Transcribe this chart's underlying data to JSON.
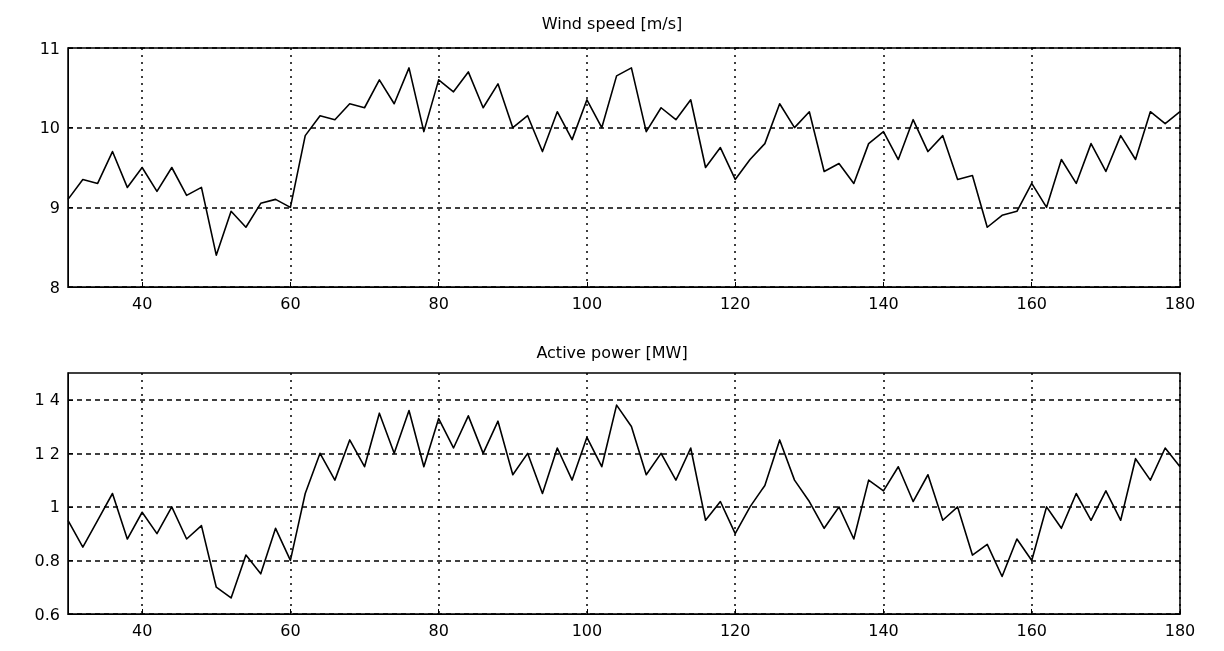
{
  "chart_data": [
    {
      "type": "line",
      "title": "Wind speed [m/s]",
      "grid": true,
      "xlim": [
        30,
        180
      ],
      "xticks": [
        40,
        60,
        80,
        100,
        120,
        140,
        160,
        180
      ],
      "ylim": [
        8,
        11
      ],
      "yticks": [
        8,
        9,
        10,
        11
      ],
      "x": [
        30,
        32,
        34,
        36,
        38,
        40,
        42,
        44,
        46,
        48,
        50,
        52,
        54,
        56,
        58,
        60,
        62,
        64,
        66,
        68,
        70,
        72,
        74,
        76,
        78,
        80,
        82,
        84,
        86,
        88,
        90,
        92,
        94,
        96,
        98,
        100,
        102,
        104,
        106,
        108,
        110,
        112,
        114,
        116,
        118,
        120,
        122,
        124,
        126,
        128,
        130,
        132,
        134,
        136,
        138,
        140,
        142,
        144,
        146,
        148,
        150,
        152,
        154,
        156,
        158,
        160,
        162,
        164,
        166,
        168,
        170,
        172,
        174,
        176,
        178,
        180
      ],
      "series": [
        {
          "color": "#000000",
          "values": [
            9.1,
            9.35,
            9.3,
            9.7,
            9.25,
            9.5,
            9.2,
            9.5,
            9.15,
            9.25,
            8.4,
            8.95,
            8.75,
            9.05,
            9.1,
            9.0,
            9.9,
            10.15,
            10.1,
            10.3,
            10.25,
            10.6,
            10.3,
            10.75,
            9.95,
            10.6,
            10.45,
            10.7,
            10.25,
            10.55,
            10.0,
            10.15,
            9.7,
            10.2,
            9.85,
            10.35,
            10.0,
            10.65,
            10.75,
            9.95,
            10.25,
            10.1,
            10.35,
            9.5,
            9.75,
            9.35,
            9.6,
            9.8,
            10.3,
            10.0,
            10.2,
            9.45,
            9.55,
            9.3,
            9.8,
            9.95,
            9.6,
            10.1,
            9.7,
            9.9,
            9.35,
            9.4,
            8.75,
            8.9,
            8.95,
            9.3,
            9.0,
            9.6,
            9.3,
            9.8,
            9.45,
            9.9,
            9.6,
            10.2,
            10.05,
            10.2
          ]
        }
      ]
    },
    {
      "type": "line",
      "title": "Active power [MW]",
      "grid": true,
      "xlim": [
        30,
        180
      ],
      "xticks": [
        40,
        60,
        80,
        100,
        120,
        140,
        160,
        180
      ],
      "ylim": [
        0.6,
        1.5
      ],
      "yticks": [
        0.6,
        0.8,
        1,
        {
          "value": 1.2,
          "label": "1 2"
        },
        {
          "value": 1.4,
          "label": "1 4"
        }
      ],
      "x": [
        30,
        32,
        34,
        36,
        38,
        40,
        42,
        44,
        46,
        48,
        50,
        52,
        54,
        56,
        58,
        60,
        62,
        64,
        66,
        68,
        70,
        72,
        74,
        76,
        78,
        80,
        82,
        84,
        86,
        88,
        90,
        92,
        94,
        96,
        98,
        100,
        102,
        104,
        106,
        108,
        110,
        112,
        114,
        116,
        118,
        120,
        122,
        124,
        126,
        128,
        130,
        132,
        134,
        136,
        138,
        140,
        142,
        144,
        146,
        148,
        150,
        152,
        154,
        156,
        158,
        160,
        162,
        164,
        166,
        168,
        170,
        172,
        174,
        176,
        178,
        180
      ],
      "series": [
        {
          "color": "#000000",
          "values": [
            0.95,
            0.85,
            0.95,
            1.05,
            0.88,
            0.98,
            0.9,
            1.0,
            0.88,
            0.93,
            0.7,
            0.66,
            0.82,
            0.75,
            0.92,
            0.8,
            1.05,
            1.2,
            1.1,
            1.25,
            1.15,
            1.35,
            1.2,
            1.36,
            1.15,
            1.33,
            1.22,
            1.34,
            1.2,
            1.32,
            1.12,
            1.2,
            1.05,
            1.22,
            1.1,
            1.26,
            1.15,
            1.38,
            1.3,
            1.12,
            1.2,
            1.1,
            1.22,
            0.95,
            1.02,
            0.9,
            1.0,
            1.08,
            1.25,
            1.1,
            1.02,
            0.92,
            1.0,
            0.88,
            1.1,
            1.06,
            1.15,
            1.02,
            1.12,
            0.95,
            1.0,
            0.82,
            0.86,
            0.74,
            0.88,
            0.8,
            1.0,
            0.92,
            1.05,
            0.95,
            1.06,
            0.95,
            1.18,
            1.1,
            1.22,
            1.15
          ]
        }
      ]
    }
  ]
}
